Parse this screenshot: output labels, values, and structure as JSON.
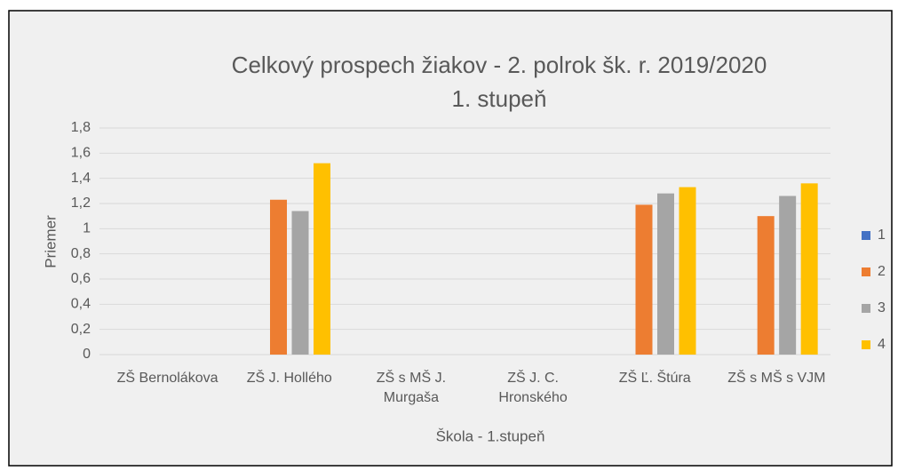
{
  "chart_data": {
    "type": "bar",
    "title": "Celkový prospech žiakov - 2. polrok šk. r. 2019/2020",
    "subtitle": "1. stupeň",
    "x_label": "Škola - 1.stupeň",
    "y_label": "Priemer",
    "categories": [
      "ZŠ Bernolákova",
      "ZŠ J. Hollého",
      "ZŠ s MŠ J. Murgaša",
      "ZŠ J. C. Hronského",
      "ZŠ Ľ. Štúra",
      "ZŠ s MŠ s VJM"
    ],
    "series": [
      {
        "name": "1",
        "color": "#4472c4",
        "values": [
          null,
          null,
          null,
          null,
          null,
          null
        ]
      },
      {
        "name": "2",
        "color": "#ed7d31",
        "values": [
          null,
          1.23,
          null,
          null,
          1.19,
          1.1
        ]
      },
      {
        "name": "3",
        "color": "#a5a5a5",
        "values": [
          null,
          1.14,
          null,
          null,
          1.28,
          1.26
        ]
      },
      {
        "name": "4",
        "color": "#ffc000",
        "values": [
          null,
          1.52,
          null,
          null,
          1.33,
          1.36
        ]
      }
    ],
    "ylim": [
      0,
      1.8
    ],
    "yticks": [
      0,
      {
        "value": 0.2,
        "label": "0,2"
      },
      {
        "value": 0.4,
        "label": "0,4"
      },
      {
        "value": 0.6,
        "label": "0,6"
      },
      {
        "value": 0.8,
        "label": "0,8"
      },
      1,
      {
        "value": 1.2,
        "label": "1,2"
      },
      {
        "value": 1.4,
        "label": "1,4"
      },
      {
        "value": 1.6,
        "label": "1,6"
      },
      {
        "value": 1.8,
        "label": "1,8"
      }
    ],
    "grid": true,
    "legend": "right"
  }
}
